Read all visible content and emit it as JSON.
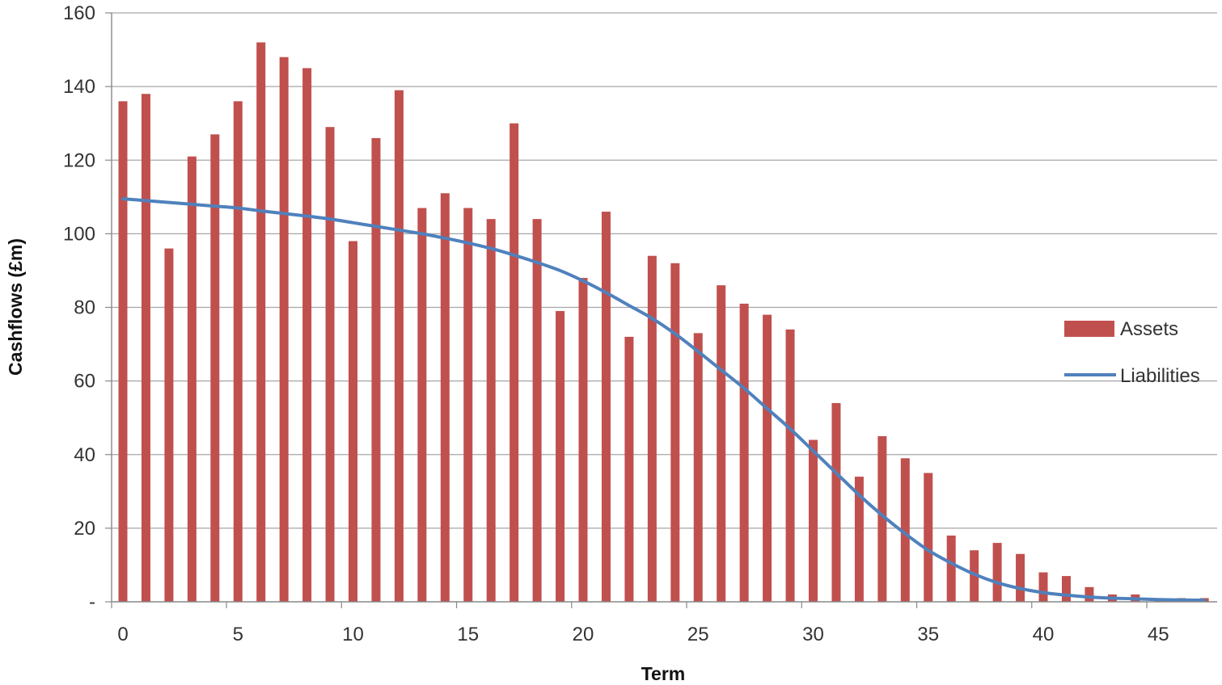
{
  "chart_data": {
    "type": "bar",
    "title": "",
    "xlabel": "Term",
    "ylabel": "Cashflows (£m)",
    "x_ticks": [
      "0",
      "5",
      "10",
      "15",
      "20",
      "25",
      "30",
      "35",
      "40",
      "45"
    ],
    "y_ticks": [
      "-",
      "20",
      "40",
      "60",
      "80",
      "100",
      "120",
      "140",
      "160"
    ],
    "ylim": [
      0,
      160
    ],
    "xlim": [
      0,
      47
    ],
    "grid": "horizontal",
    "legend_position": "right",
    "series": [
      {
        "name": "Assets",
        "type": "bar",
        "color": "#c0504d",
        "x": [
          0,
          1,
          2,
          3,
          4,
          5,
          6,
          7,
          8,
          9,
          10,
          11,
          12,
          13,
          14,
          15,
          16,
          17,
          18,
          19,
          20,
          21,
          22,
          23,
          24,
          25,
          26,
          27,
          28,
          29,
          30,
          31,
          32,
          33,
          34,
          35,
          36,
          37,
          38,
          39,
          40,
          41,
          42,
          43,
          44,
          45,
          46,
          47
        ],
        "values": [
          136,
          138,
          96,
          121,
          127,
          136,
          152,
          148,
          145,
          129,
          98,
          126,
          139,
          107,
          111,
          107,
          104,
          130,
          104,
          79,
          88,
          106,
          72,
          94,
          92,
          73,
          86,
          81,
          78,
          74,
          44,
          54,
          34,
          45,
          39,
          35,
          18,
          14,
          16,
          13,
          8,
          7,
          4,
          2,
          2,
          1,
          1,
          1
        ]
      },
      {
        "name": "Liabilities",
        "type": "line",
        "color": "#4f81bd",
        "x": [
          0,
          1,
          2,
          3,
          4,
          5,
          6,
          7,
          8,
          9,
          10,
          11,
          12,
          13,
          14,
          15,
          16,
          17,
          18,
          19,
          20,
          21,
          22,
          23,
          24,
          25,
          26,
          27,
          28,
          29,
          30,
          31,
          32,
          33,
          34,
          35,
          36,
          37,
          38,
          39,
          40,
          41,
          42,
          43,
          44,
          45,
          46,
          47
        ],
        "values": [
          109.5,
          109,
          108.5,
          108,
          107.5,
          107,
          106.2,
          105.5,
          104.8,
          104,
          103,
          102,
          101,
          100,
          98.8,
          97.5,
          96,
          94.2,
          92.2,
          90,
          87.2,
          84,
          80.5,
          77,
          72.8,
          68,
          63,
          58,
          52.5,
          47,
          41,
          35,
          29,
          23.5,
          18.5,
          14,
          10.5,
          7.5,
          5.2,
          3.6,
          2.5,
          1.8,
          1.3,
          1,
          0.8,
          0.6,
          0.5,
          0.4
        ]
      }
    ]
  }
}
